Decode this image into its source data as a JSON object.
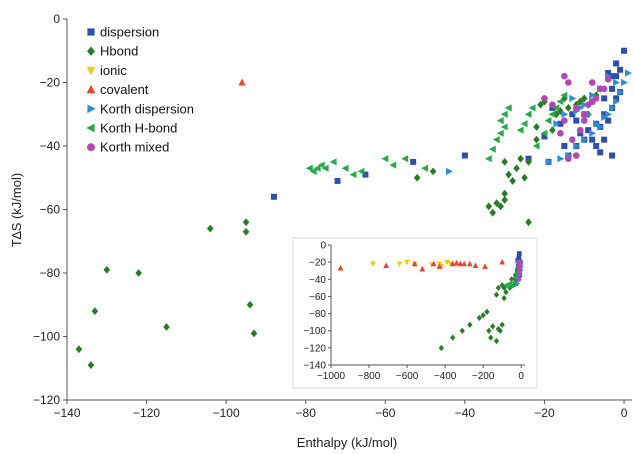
{
  "chart_data": {
    "type": "scatter",
    "xlabel": "Enthalpy (kJ/mol)",
    "ylabel": "T∆S (kJ/mol)",
    "xlim": [
      -140,
      2
    ],
    "ylim": [
      -120,
      0
    ],
    "xticks": [
      -140,
      -120,
      -100,
      -80,
      -60,
      -40,
      -20,
      0
    ],
    "yticks": [
      -120,
      -100,
      -80,
      -60,
      -40,
      -20,
      0
    ],
    "grid": false,
    "legend_position": "top-left",
    "series": [
      {
        "name": "dispersion",
        "marker": "square",
        "color": "#2e4fa5",
        "points": [
          [
            -88,
            -56
          ],
          [
            -72,
            -51
          ],
          [
            -65,
            -49
          ],
          [
            -53,
            -45
          ],
          [
            -40,
            -43
          ],
          [
            -24,
            -44
          ],
          [
            -19,
            -45
          ],
          [
            -14,
            -43
          ],
          [
            -12,
            -40
          ],
          [
            -10,
            -38
          ],
          [
            -8,
            -38
          ],
          [
            -7,
            -40
          ],
          [
            -6,
            -34
          ],
          [
            -5,
            -30
          ],
          [
            -4,
            -32
          ],
          [
            -3,
            -28
          ],
          [
            -2,
            -25
          ],
          [
            -1,
            -23
          ],
          [
            -10,
            -30
          ],
          [
            -9,
            -35
          ],
          [
            -12,
            -32
          ],
          [
            -11,
            -36
          ],
          [
            -16,
            -33
          ],
          [
            -18,
            -28
          ],
          [
            -6,
            -42
          ],
          [
            -15,
            -40
          ],
          [
            -3,
            -22
          ],
          [
            -2,
            -18
          ],
          [
            -4,
            -17
          ],
          [
            -1,
            -16
          ],
          [
            -2,
            -14
          ],
          [
            -3,
            -18
          ],
          [
            -5,
            -25
          ],
          [
            -8,
            -26
          ],
          [
            -13,
            -30
          ],
          [
            -5,
            -38
          ],
          [
            -3,
            -43
          ],
          [
            -20,
            -37
          ],
          [
            -7,
            -33
          ],
          [
            0,
            -10
          ]
        ]
      },
      {
        "name": "Hbond",
        "marker": "diamond",
        "color": "#2a7a2a",
        "points": [
          [
            -137,
            -104
          ],
          [
            -134,
            -109
          ],
          [
            -133,
            -92
          ],
          [
            -130,
            -79
          ],
          [
            -122,
            -80
          ],
          [
            -115,
            -97
          ],
          [
            -104,
            -66
          ],
          [
            -95,
            -64
          ],
          [
            -95,
            -67
          ],
          [
            -94,
            -90
          ],
          [
            -93,
            -99
          ],
          [
            -30,
            -55
          ],
          [
            -32,
            -58
          ],
          [
            -33,
            -61
          ],
          [
            -31,
            -59
          ],
          [
            -30,
            -57
          ],
          [
            -29,
            -49
          ],
          [
            -28,
            -51
          ],
          [
            -30,
            -45
          ],
          [
            -27,
            -47
          ],
          [
            -26,
            -44
          ],
          [
            -24,
            -64
          ],
          [
            -24,
            -45
          ],
          [
            -22,
            -34
          ],
          [
            -21,
            -27
          ],
          [
            -20,
            -26
          ],
          [
            -18,
            -35
          ],
          [
            -17,
            -30
          ],
          [
            -16,
            -29
          ],
          [
            -15,
            -25
          ],
          [
            -14,
            -28
          ],
          [
            -12,
            -27
          ],
          [
            -11,
            -26
          ],
          [
            -10,
            -25
          ],
          [
            -9,
            -30
          ],
          [
            -8,
            -26
          ],
          [
            -7,
            -24
          ],
          [
            -6,
            -22
          ],
          [
            -52,
            -50
          ],
          [
            -48,
            -48
          ],
          [
            -34,
            -59
          ],
          [
            -25,
            -50
          ],
          [
            -22,
            -38
          ]
        ]
      },
      {
        "name": "ionic",
        "marker": "triangle-down",
        "color": "#f5c518",
        "points": []
      },
      {
        "name": "covalent",
        "marker": "triangle-up",
        "color": "#e8452a",
        "points": [
          [
            -96,
            -20
          ]
        ]
      },
      {
        "name": "Korth dispersion",
        "marker": "triangle-right",
        "color": "#2b8fd6",
        "points": [
          [
            -44,
            -48
          ],
          [
            -19,
            -45
          ],
          [
            -16,
            -44
          ],
          [
            -14,
            -43
          ],
          [
            -12,
            -40
          ],
          [
            -10,
            -38
          ],
          [
            -8,
            -36
          ],
          [
            -6,
            -34
          ],
          [
            -4,
            -30
          ],
          [
            -2,
            -26
          ],
          [
            -1,
            -23
          ],
          [
            0,
            -20
          ],
          [
            1,
            -17
          ],
          [
            -3,
            -28
          ],
          [
            -5,
            -31
          ],
          [
            -7,
            -33
          ],
          [
            -9,
            -30
          ],
          [
            -11,
            -28
          ],
          [
            -13,
            -25
          ],
          [
            -15,
            -30
          ],
          [
            -17,
            -33
          ],
          [
            -6,
            -22
          ],
          [
            -8,
            -24
          ],
          [
            -10,
            -27
          ],
          [
            -12,
            -29
          ],
          [
            -2,
            -20
          ],
          [
            -4,
            -18
          ]
        ]
      },
      {
        "name": "Korth H-bond",
        "marker": "triangle-left",
        "color": "#2aa84a",
        "points": [
          [
            -79,
            -47
          ],
          [
            -78,
            -48
          ],
          [
            -77,
            -47
          ],
          [
            -76,
            -46
          ],
          [
            -75,
            -47
          ],
          [
            -73,
            -45
          ],
          [
            -70,
            -47
          ],
          [
            -68,
            -49
          ],
          [
            -66,
            -48
          ],
          [
            -60,
            -44
          ],
          [
            -58,
            -46
          ],
          [
            -55,
            -44
          ],
          [
            -50,
            -47
          ],
          [
            -34,
            -44
          ],
          [
            -33,
            -41
          ],
          [
            -32,
            -38
          ],
          [
            -31,
            -36
          ],
          [
            -30,
            -34
          ],
          [
            -31,
            -32
          ],
          [
            -30,
            -30
          ],
          [
            -29,
            -28
          ],
          [
            -26,
            -35
          ],
          [
            -25,
            -33
          ],
          [
            -24,
            -30
          ],
          [
            -23,
            -28
          ],
          [
            -22,
            -40
          ],
          [
            -20,
            -36
          ],
          [
            -19,
            -32
          ],
          [
            -18,
            -30
          ],
          [
            -17,
            -28
          ],
          [
            -16,
            -26
          ],
          [
            -15,
            -24
          ]
        ]
      },
      {
        "name": "Korth mixed",
        "marker": "circle",
        "color": "#b04ab0",
        "points": [
          [
            -15,
            -18
          ],
          [
            -14,
            -20
          ],
          [
            -18,
            -27
          ],
          [
            -20,
            -25
          ],
          [
            -12,
            -28
          ],
          [
            -10,
            -30
          ],
          [
            -8,
            -26
          ],
          [
            -6,
            -22
          ],
          [
            -8,
            -20
          ],
          [
            -15,
            -32
          ],
          [
            -16,
            -36
          ],
          [
            -12,
            -43
          ],
          [
            -14,
            -44
          ],
          [
            -13,
            -38
          ],
          [
            -10,
            -32
          ],
          [
            -9,
            -27
          ],
          [
            -7,
            -25
          ],
          [
            -5,
            -22
          ],
          [
            -4,
            -19
          ],
          [
            -11,
            -35
          ]
        ]
      }
    ],
    "inset": {
      "xlim": [
        -1000,
        20
      ],
      "ylim": [
        -140,
        0
      ],
      "xticks": [
        -1000,
        -800,
        -600,
        -400,
        -200,
        0
      ],
      "yticks": [
        -140,
        -120,
        -100,
        -80,
        -60,
        -40,
        -20,
        0
      ],
      "series": [
        {
          "name": "dispersion",
          "points": [
            [
              -10,
              -10
            ],
            [
              -5,
              -20
            ],
            [
              -15,
              -25
            ],
            [
              -20,
              -30
            ],
            [
              -8,
              -35
            ],
            [
              -12,
              -15
            ],
            [
              -25,
              -40
            ],
            [
              -30,
              -45
            ],
            [
              -6,
              -28
            ],
            [
              -18,
              -18
            ]
          ]
        },
        {
          "name": "Hbond",
          "points": [
            [
              -420,
              -120
            ],
            [
              -360,
              -108
            ],
            [
              -310,
              -100
            ],
            [
              -270,
              -93
            ],
            [
              -220,
              -85
            ],
            [
              -200,
              -82
            ],
            [
              -180,
              -78
            ],
            [
              -170,
              -100
            ],
            [
              -160,
              -108
            ],
            [
              -150,
              -95
            ],
            [
              -130,
              -112
            ],
            [
              -120,
              -98
            ],
            [
              -110,
              -100
            ],
            [
              -100,
              -93
            ],
            [
              -90,
              -62
            ],
            [
              -80,
              -55
            ],
            [
              -60,
              -50
            ],
            [
              -50,
              -40
            ],
            [
              -30,
              -35
            ],
            [
              -20,
              -30
            ],
            [
              -130,
              -58
            ],
            [
              -120,
              -50
            ],
            [
              -100,
              -47
            ],
            [
              -90,
              -50
            ]
          ]
        },
        {
          "name": "ionic",
          "points": [
            [
              -780,
              -22
            ],
            [
              -640,
              -22
            ],
            [
              -600,
              -20
            ],
            [
              -560,
              -22
            ],
            [
              -470,
              -23
            ],
            [
              -430,
              -22
            ],
            [
              -420,
              -25
            ],
            [
              -390,
              -20
            ],
            [
              -370,
              -22
            ]
          ]
        },
        {
          "name": "covalent",
          "points": [
            [
              -950,
              -27
            ],
            [
              -710,
              -24
            ],
            [
              -560,
              -22
            ],
            [
              -520,
              -28
            ],
            [
              -460,
              -22
            ],
            [
              -430,
              -25
            ],
            [
              -360,
              -22
            ],
            [
              -340,
              -21
            ],
            [
              -320,
              -22
            ],
            [
              -300,
              -22
            ],
            [
              -270,
              -22
            ],
            [
              -240,
              -24
            ],
            [
              -190,
              -25
            ],
            [
              -100,
              -20
            ]
          ]
        },
        {
          "name": "Korth dispersion",
          "points": [
            [
              -40,
              -48
            ],
            [
              -20,
              -45
            ],
            [
              -12,
              -40
            ],
            [
              -8,
              -35
            ],
            [
              -5,
              -30
            ],
            [
              -3,
              -25
            ],
            [
              -2,
              -20
            ],
            [
              -10,
              -28
            ]
          ]
        },
        {
          "name": "Korth H-bond",
          "points": [
            [
              -80,
              -47
            ],
            [
              -70,
              -48
            ],
            [
              -60,
              -45
            ],
            [
              -50,
              -47
            ],
            [
              -35,
              -44
            ],
            [
              -30,
              -38
            ],
            [
              -25,
              -33
            ],
            [
              -20,
              -28
            ],
            [
              -15,
              -25
            ]
          ]
        },
        {
          "name": "Korth mixed",
          "points": [
            [
              -15,
              -20
            ],
            [
              -12,
              -28
            ],
            [
              -10,
              -32
            ],
            [
              -8,
              -26
            ],
            [
              -14,
              -40
            ],
            [
              -5,
              -22
            ]
          ]
        }
      ]
    }
  }
}
